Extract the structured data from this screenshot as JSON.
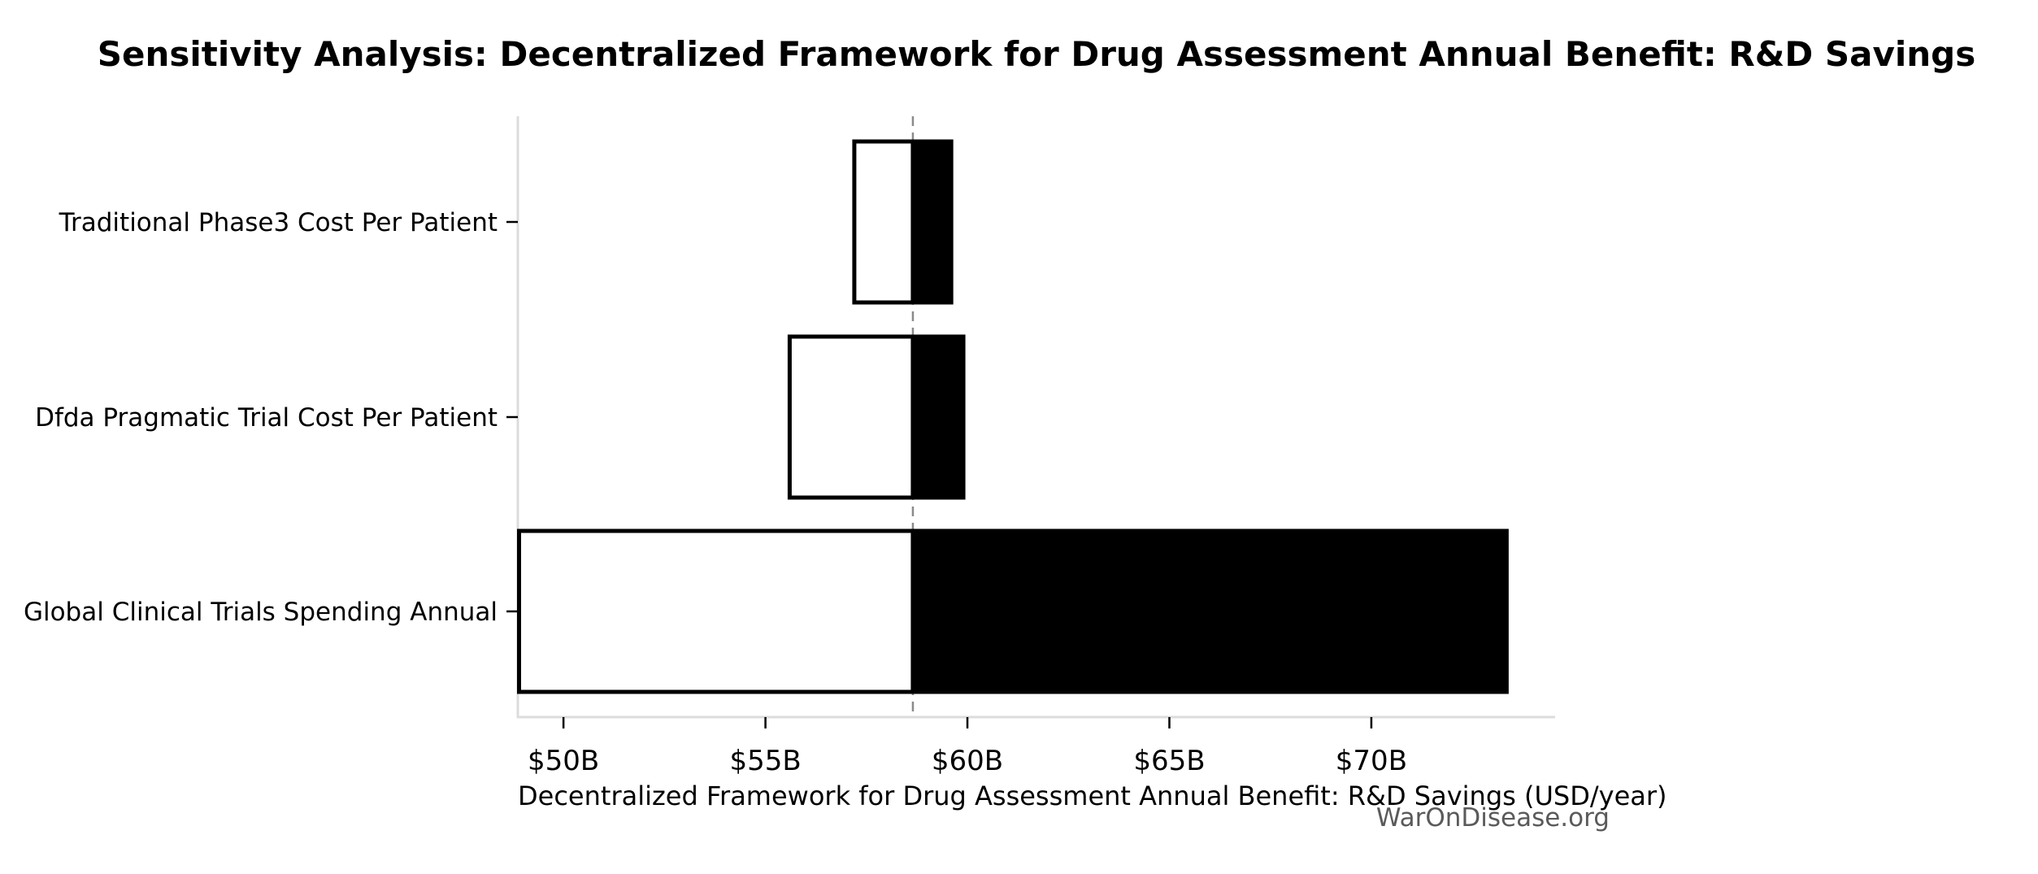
{
  "watermark": "WarOnDisease.org",
  "colors": {
    "background": "#ffffff",
    "text": "#000000",
    "bar_edge": "#000000",
    "low_fill": "#ffffff",
    "high_fill": "#000000",
    "baseline_line": "#8a8a8a",
    "spine": "#dcdcdc",
    "watermark": "#5a5a5a"
  },
  "chart_data": {
    "type": "bar",
    "subtype": "tornado-sensitivity",
    "orientation": "horizontal",
    "title": "Sensitivity Analysis: Decentralized Framework for Drug Assessment Annual Benefit: R&D Savings",
    "xlabel": "Decentralized Framework for Drug Assessment Annual Benefit: R&D Savings (USD/year)",
    "ylabel": "",
    "units": "USD billions per year",
    "baseline": 58.65,
    "xlim": [
      48.87,
      74.55
    ],
    "grid": false,
    "legend": false,
    "x_ticks": [
      {
        "value": 50,
        "label": "$50B"
      },
      {
        "value": 55,
        "label": "$55B"
      },
      {
        "value": 60,
        "label": "$60B"
      },
      {
        "value": 65,
        "label": "$65B"
      },
      {
        "value": 70,
        "label": "$70B"
      }
    ],
    "categories": [
      "Traditional Phase3 Cost Per Patient",
      "Dfda Pragmatic Trial Cost Per Patient",
      "Global Clinical Trials Spending Annual"
    ],
    "series": [
      {
        "name": "low-estimate",
        "style": "white-outlined",
        "values": [
          57.2,
          55.6,
          48.9
        ]
      },
      {
        "name": "high-estimate",
        "style": "black-filled",
        "values": [
          59.6,
          59.9,
          73.35
        ]
      }
    ]
  }
}
